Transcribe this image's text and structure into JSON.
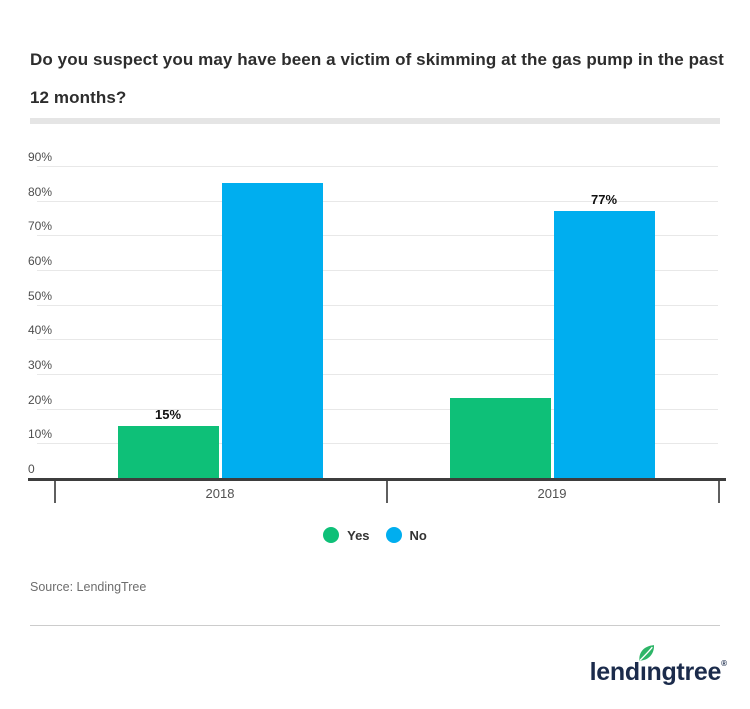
{
  "title": "Do you suspect you may have been a victim of skimming at the gas pump in the past 12 months?",
  "source": "Source: LendingTree",
  "logo": {
    "part1": "lend",
    "dotless_i": "ı",
    "part2": "ngtree",
    "registered": "®",
    "text_color": "#1b2b4b",
    "leaf_color": "#2db567"
  },
  "chart_data": {
    "type": "bar",
    "categories": [
      "2018",
      "2019"
    ],
    "series": [
      {
        "name": "Yes",
        "color": "#0ec078",
        "values": [
          15,
          23
        ],
        "value_labels": [
          "15%",
          null
        ]
      },
      {
        "name": "No",
        "color": "#00aeef",
        "values": [
          85,
          77
        ],
        "value_labels": [
          null,
          "77%"
        ]
      }
    ],
    "value_labels_shown": {
      "2018": {
        "Yes": "15%",
        "No": null
      },
      "2019": {
        "Yes": "23%",
        "No": "77%"
      }
    },
    "title": "",
    "xlabel": "",
    "ylabel": "",
    "ylim": [
      0,
      90
    ],
    "ytick_step": 10,
    "ytick_suffix": "%",
    "ytick_zero_label": "0",
    "grid": true,
    "legend_position": "bottom",
    "legend": [
      "Yes",
      "No"
    ]
  }
}
